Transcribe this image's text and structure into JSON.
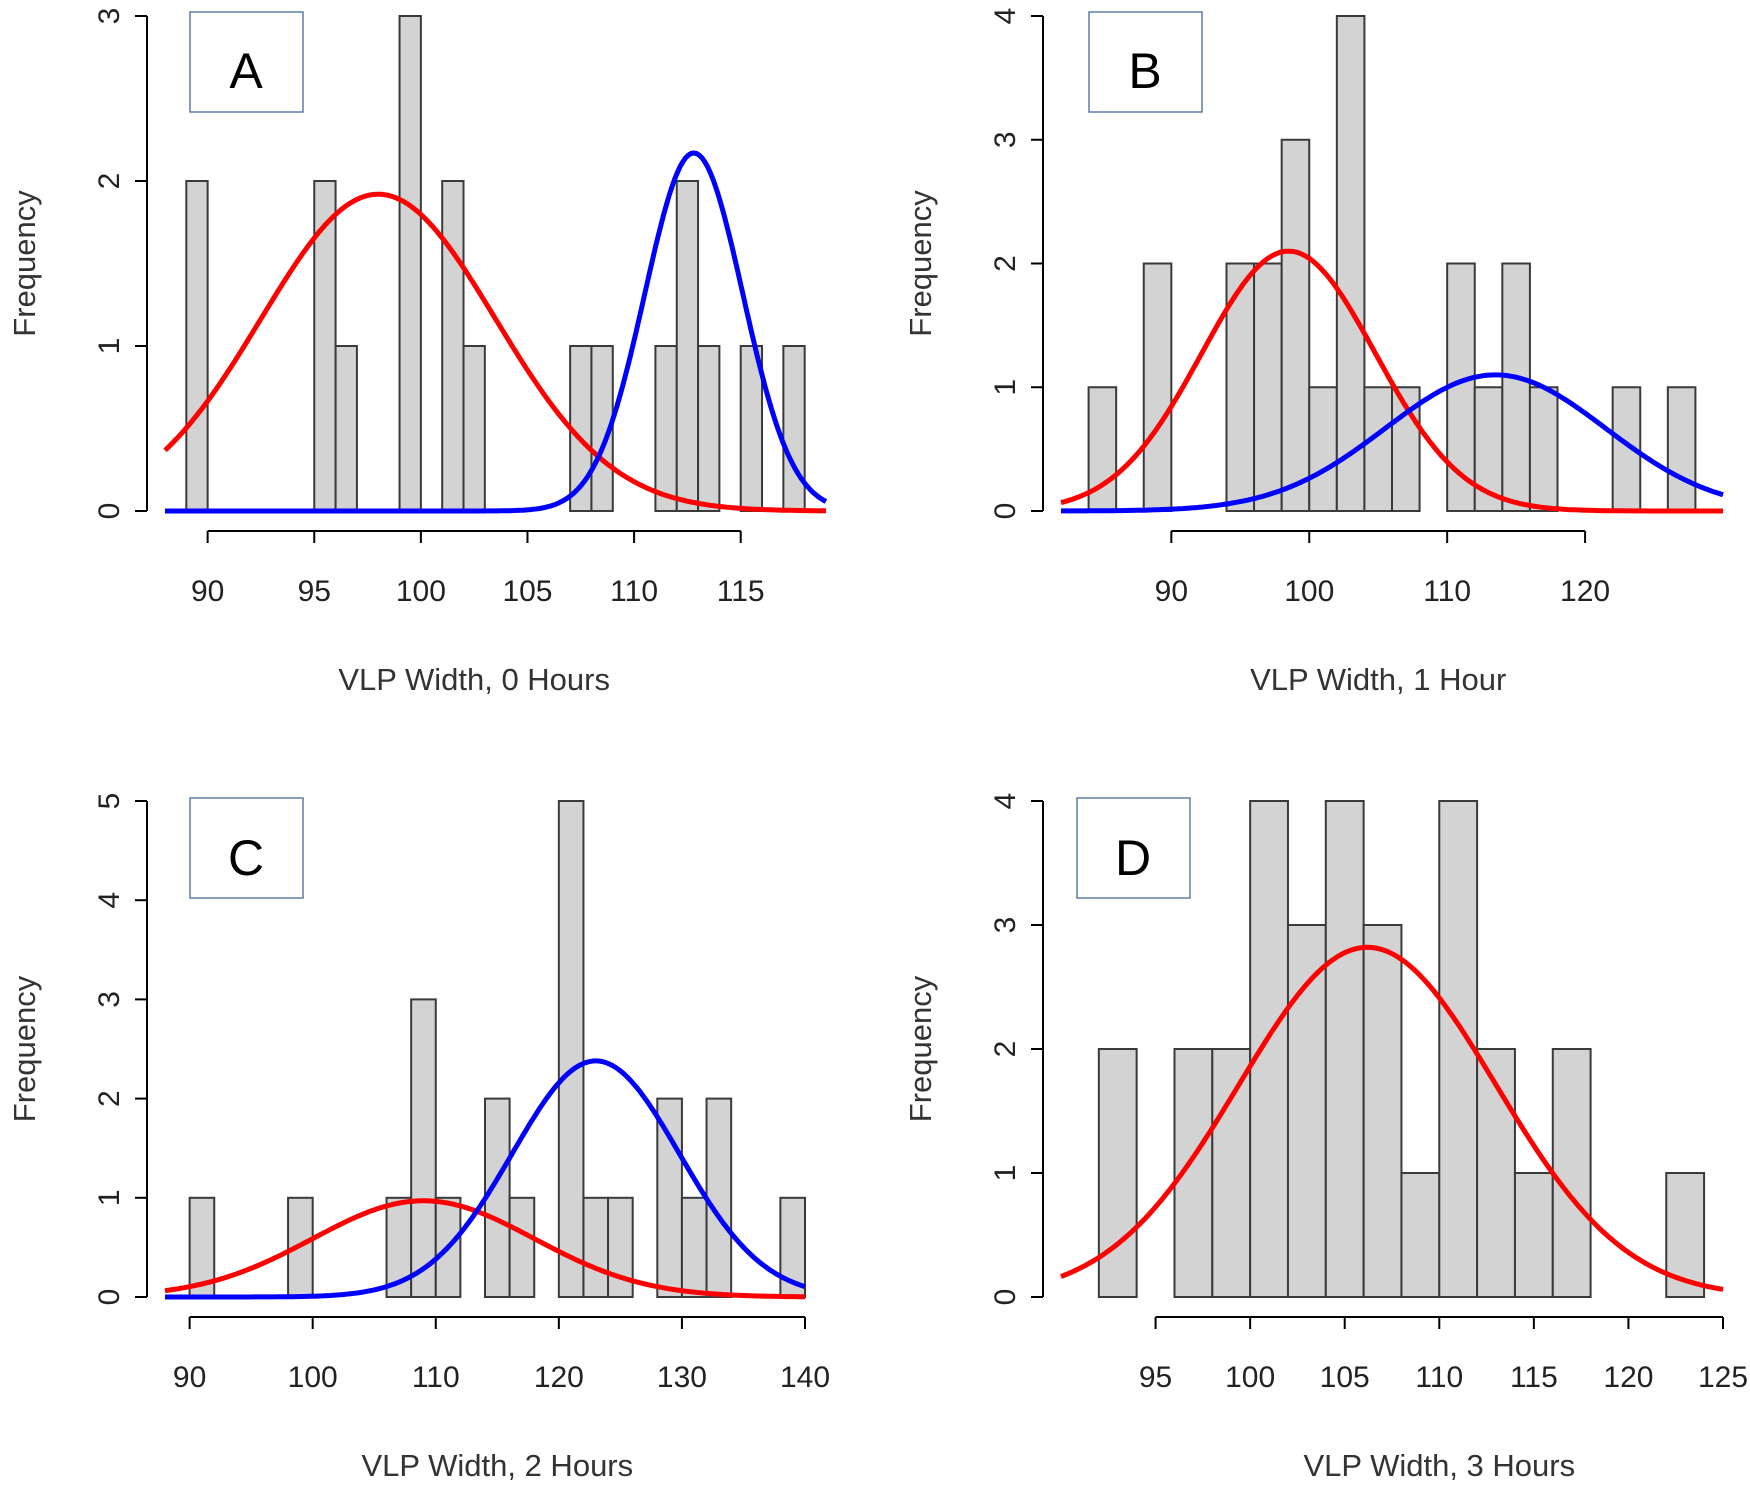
{
  "chart_data": [
    {
      "type": "bar",
      "panel_label": "A",
      "xlabel": "VLP Width, 0 Hours",
      "ylabel": "Frequency",
      "xlim": [
        88,
        119
      ],
      "ylim": [
        0,
        3
      ],
      "xticks": [
        90,
        95,
        100,
        105,
        110,
        115
      ],
      "yticks": [
        0,
        1,
        2,
        3
      ],
      "bin_width": 1,
      "bars": [
        {
          "start": 89,
          "value": 2
        },
        {
          "start": 95,
          "value": 2
        },
        {
          "start": 96,
          "value": 1
        },
        {
          "start": 99,
          "value": 3
        },
        {
          "start": 101,
          "value": 2
        },
        {
          "start": 102,
          "value": 1
        },
        {
          "start": 107,
          "value": 1
        },
        {
          "start": 108,
          "value": 1
        },
        {
          "start": 111,
          "value": 1
        },
        {
          "start": 112,
          "value": 2
        },
        {
          "start": 113,
          "value": 1
        },
        {
          "start": 115,
          "value": 1
        },
        {
          "start": 117,
          "value": 1
        }
      ],
      "curves": [
        {
          "color": "#ff0000",
          "mean": 98,
          "sd": 5.5,
          "peak": 1.92
        },
        {
          "color": "#0000ff",
          "mean": 112.8,
          "sd": 2.3,
          "peak": 2.17
        }
      ],
      "grid": false
    },
    {
      "type": "bar",
      "panel_label": "B",
      "xlabel": "VLP Width, 1 Hour",
      "ylabel": "Frequency",
      "xlim": [
        82,
        130
      ],
      "ylim": [
        0,
        4
      ],
      "xticks": [
        90,
        100,
        110,
        120
      ],
      "yticks": [
        0,
        1,
        2,
        3,
        4
      ],
      "bin_width": 2,
      "bars": [
        {
          "start": 84,
          "value": 1
        },
        {
          "start": 88,
          "value": 2
        },
        {
          "start": 94,
          "value": 2
        },
        {
          "start": 96,
          "value": 2
        },
        {
          "start": 98,
          "value": 3
        },
        {
          "start": 100,
          "value": 1
        },
        {
          "start": 102,
          "value": 4
        },
        {
          "start": 104,
          "value": 1
        },
        {
          "start": 106,
          "value": 1
        },
        {
          "start": 110,
          "value": 2
        },
        {
          "start": 112,
          "value": 1
        },
        {
          "start": 114,
          "value": 2
        },
        {
          "start": 116,
          "value": 1
        },
        {
          "start": 122,
          "value": 1
        },
        {
          "start": 126,
          "value": 1
        }
      ],
      "curves": [
        {
          "color": "#ff0000",
          "mean": 98.5,
          "sd": 6.3,
          "peak": 2.1
        },
        {
          "color": "#0000ff",
          "mean": 113.5,
          "sd": 8.0,
          "peak": 1.1
        }
      ],
      "grid": false
    },
    {
      "type": "bar",
      "panel_label": "C",
      "xlabel": "VLP Width, 2 Hours",
      "ylabel": "Frequency",
      "xlim": [
        88,
        140
      ],
      "ylim": [
        0,
        5
      ],
      "xticks": [
        90,
        100,
        110,
        120,
        130,
        140
      ],
      "yticks": [
        0,
        1,
        2,
        3,
        4,
        5
      ],
      "bin_width": 2,
      "bars": [
        {
          "start": 90,
          "value": 1
        },
        {
          "start": 98,
          "value": 1
        },
        {
          "start": 106,
          "value": 1
        },
        {
          "start": 108,
          "value": 3
        },
        {
          "start": 110,
          "value": 1
        },
        {
          "start": 114,
          "value": 2
        },
        {
          "start": 116,
          "value": 1
        },
        {
          "start": 120,
          "value": 5
        },
        {
          "start": 122,
          "value": 1
        },
        {
          "start": 124,
          "value": 1
        },
        {
          "start": 128,
          "value": 2
        },
        {
          "start": 130,
          "value": 1
        },
        {
          "start": 132,
          "value": 2
        },
        {
          "start": 138,
          "value": 1
        }
      ],
      "curves": [
        {
          "color": "#ff0000",
          "mean": 109,
          "sd": 9.0,
          "peak": 0.97
        },
        {
          "color": "#0000ff",
          "mean": 123,
          "sd": 6.8,
          "peak": 2.38
        }
      ],
      "grid": false
    },
    {
      "type": "bar",
      "panel_label": "D",
      "xlabel": "VLP Width, 3 Hours",
      "ylabel": "Frequency",
      "xlim": [
        90,
        125
      ],
      "ylim": [
        0,
        4
      ],
      "xticks": [
        95,
        100,
        105,
        110,
        115,
        120,
        125
      ],
      "yticks": [
        0,
        1,
        2,
        3,
        4
      ],
      "bin_width": 2,
      "bars": [
        {
          "start": 92,
          "value": 2
        },
        {
          "start": 96,
          "value": 2
        },
        {
          "start": 98,
          "value": 2
        },
        {
          "start": 100,
          "value": 4
        },
        {
          "start": 102,
          "value": 3
        },
        {
          "start": 104,
          "value": 4
        },
        {
          "start": 106,
          "value": 3
        },
        {
          "start": 108,
          "value": 1
        },
        {
          "start": 110,
          "value": 4
        },
        {
          "start": 112,
          "value": 2
        },
        {
          "start": 114,
          "value": 1
        },
        {
          "start": 116,
          "value": 2
        },
        {
          "start": 122,
          "value": 1
        }
      ],
      "curves": [
        {
          "color": "#ff0000",
          "mean": 106.2,
          "sd": 6.8,
          "peak": 2.82
        }
      ],
      "grid": false
    }
  ]
}
